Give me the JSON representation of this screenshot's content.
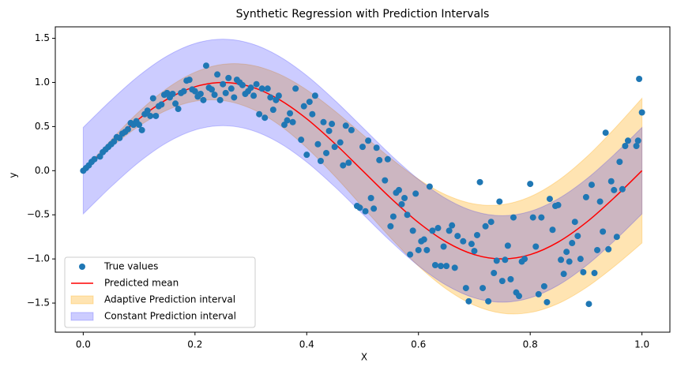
{
  "chart_data": {
    "type": "scatter",
    "title": "Synthetic Regression with Prediction Intervals",
    "xlabel": "X",
    "ylabel": "y",
    "xlim": [
      -0.05,
      1.05
    ],
    "ylim": [
      -1.83,
      1.63
    ],
    "xticks": [
      {
        "value": 0,
        "label": "0.0"
      },
      0.2,
      0.4,
      0.6,
      0.8,
      {
        "value": 1,
        "label": "1.0"
      }
    ],
    "yticks": [
      {
        "value": -1.5,
        "label": "−1.5"
      },
      {
        "value": -1,
        "label": "−1.0"
      },
      {
        "value": -0.5,
        "label": "−0.5"
      },
      {
        "value": 0,
        "label": "0.0"
      },
      0.5,
      {
        "value": 1,
        "label": "1.0"
      },
      1.5
    ],
    "grid": false,
    "legend": "lower left",
    "series": [
      {
        "name": "Adaptive Prediction interval",
        "type": "band",
        "color": "#ffa500",
        "opacity": 0.3,
        "x": [
          0,
          0.05,
          0.1,
          0.15,
          0.2,
          0.25,
          0.3,
          0.35,
          0.4,
          0.45,
          0.5,
          0.55,
          0.6,
          0.65,
          0.7,
          0.75,
          0.8,
          0.85,
          0.9,
          0.95,
          1
        ],
        "lower": [
          0,
          0.268,
          0.506,
          0.686,
          0.787,
          0.795,
          0.705,
          0.522,
          0.26,
          -0.06,
          -0.41,
          -0.76,
          -1.08,
          -1.342,
          -1.525,
          -1.615,
          -1.607,
          -1.506,
          -1.326,
          -1.088,
          -0.82
        ],
        "upper": [
          0,
          0.35,
          0.67,
          0.932,
          1.115,
          1.205,
          1.197,
          1.096,
          0.916,
          0.678,
          0.41,
          0.142,
          -0.096,
          -0.276,
          -0.377,
          -0.385,
          -0.295,
          -0.112,
          0.15,
          0.47,
          0.82
        ]
      },
      {
        "name": "Constant Prediction interval",
        "type": "band",
        "color": "#0000ff",
        "opacity": 0.2,
        "x": [
          0,
          0.05,
          0.1,
          0.15,
          0.2,
          0.25,
          0.3,
          0.35,
          0.4,
          0.45,
          0.5,
          0.55,
          0.6,
          0.65,
          0.7,
          0.75,
          0.8,
          0.85,
          0.9,
          0.95,
          1
        ],
        "lower": [
          -0.49,
          -0.181,
          0.098,
          0.319,
          0.461,
          0.51,
          0.461,
          0.319,
          0.098,
          -0.181,
          -0.49,
          -0.799,
          -1.078,
          -1.299,
          -1.441,
          -1.49,
          -1.441,
          -1.299,
          -1.078,
          -0.799,
          -0.49
        ],
        "upper": [
          0.49,
          0.799,
          1.078,
          1.299,
          1.441,
          1.49,
          1.441,
          1.299,
          1.078,
          0.799,
          0.49,
          0.181,
          -0.098,
          -0.319,
          -0.461,
          -0.51,
          -0.461,
          -0.319,
          -0.098,
          0.181,
          0.49
        ]
      },
      {
        "name": "Predicted mean",
        "type": "line",
        "color": "#ff0000",
        "x": [
          0,
          0.05,
          0.1,
          0.15,
          0.2,
          0.25,
          0.3,
          0.35,
          0.4,
          0.45,
          0.5,
          0.55,
          0.6,
          0.65,
          0.7,
          0.75,
          0.8,
          0.85,
          0.9,
          0.95,
          1
        ],
        "values": [
          0,
          0.309,
          0.588,
          0.809,
          0.951,
          1,
          0.951,
          0.809,
          0.588,
          0.309,
          0,
          -0.309,
          -0.588,
          -0.809,
          -0.951,
          -1,
          -0.951,
          -0.809,
          -0.588,
          -0.309,
          0
        ]
      },
      {
        "name": "True values",
        "type": "scatter",
        "color": "#1f77b4",
        "x": [
          0,
          0.005,
          0.01,
          0.015,
          0.02,
          0.03,
          0.035,
          0.04,
          0.045,
          0.05,
          0.055,
          0.06,
          0.065,
          0.07,
          0.075,
          0.08,
          0.085,
          0.09,
          0.095,
          0.1,
          0.105,
          0.11,
          0.115,
          0.12,
          0.125,
          0.13,
          0.135,
          0.14,
          0.145,
          0.15,
          0.155,
          0.16,
          0.165,
          0.17,
          0.175,
          0.18,
          0.185,
          0.19,
          0.195,
          0.2,
          0.205,
          0.21,
          0.215,
          0.22,
          0.225,
          0.23,
          0.235,
          0.24,
          0.245,
          0.25,
          0.255,
          0.26,
          0.265,
          0.27,
          0.275,
          0.28,
          0.285,
          0.29,
          0.295,
          0.3,
          0.305,
          0.31,
          0.315,
          0.32,
          0.325,
          0.33,
          0.335,
          0.34,
          0.345,
          0.35,
          0.36,
          0.365,
          0.37,
          0.375,
          0.38,
          0.39,
          0.395,
          0.4,
          0.405,
          0.41,
          0.415,
          0.42,
          0.425,
          0.43,
          0.435,
          0.44,
          0.445,
          0.45,
          0.46,
          0.465,
          0.47,
          0.475,
          0.48,
          0.49,
          0.495,
          0.5,
          0.505,
          0.51,
          0.515,
          0.52,
          0.525,
          0.53,
          0.54,
          0.545,
          0.55,
          0.555,
          0.56,
          0.565,
          0.57,
          0.575,
          0.58,
          0.585,
          0.59,
          0.595,
          0.6,
          0.605,
          0.61,
          0.615,
          0.62,
          0.625,
          0.63,
          0.635,
          0.64,
          0.645,
          0.65,
          0.655,
          0.66,
          0.665,
          0.67,
          0.68,
          0.685,
          0.69,
          0.695,
          0.7,
          0.705,
          0.71,
          0.715,
          0.72,
          0.725,
          0.73,
          0.735,
          0.74,
          0.745,
          0.75,
          0.755,
          0.76,
          0.765,
          0.77,
          0.775,
          0.78,
          0.785,
          0.79,
          0.8,
          0.805,
          0.81,
          0.815,
          0.82,
          0.825,
          0.83,
          0.835,
          0.84,
          0.845,
          0.85,
          0.855,
          0.86,
          0.865,
          0.87,
          0.875,
          0.88,
          0.885,
          0.89,
          0.895,
          0.9,
          0.905,
          0.91,
          0.915,
          0.92,
          0.925,
          0.93,
          0.935,
          0.94,
          0.945,
          0.95,
          0.955,
          0.96,
          0.965,
          0.97,
          0.975,
          0.99,
          0.993,
          0.995,
          1
        ],
        "values": [
          0,
          0.03,
          0.06,
          0.1,
          0.13,
          0.16,
          0.21,
          0.24,
          0.27,
          0.3,
          0.33,
          0.38,
          0.37,
          0.42,
          0.44,
          0.47,
          0.54,
          0.52,
          0.56,
          0.52,
          0.46,
          0.64,
          0.68,
          0.62,
          0.82,
          0.62,
          0.73,
          0.75,
          0.86,
          0.88,
          0.83,
          0.87,
          0.76,
          0.7,
          0.88,
          0.9,
          1.02,
          1.03,
          0.92,
          0.9,
          0.84,
          0.87,
          0.8,
          1.19,
          0.94,
          0.92,
          0.86,
          1.09,
          0.8,
          0.98,
          0.88,
          1.05,
          0.93,
          0.83,
          1.03,
          1,
          0.97,
          0.87,
          0.9,
          0.94,
          0.85,
          0.98,
          0.64,
          0.93,
          0.6,
          0.93,
          0.83,
          0.69,
          0.8,
          0.85,
          0.52,
          0.57,
          0.65,
          0.55,
          0.93,
          0.35,
          0.73,
          0.18,
          0.78,
          0.64,
          0.85,
          0.3,
          0.11,
          0.55,
          0.2,
          0.45,
          0.53,
          0.27,
          0.32,
          0.06,
          0.51,
          0.09,
          0.46,
          -0.4,
          -0.42,
          0.27,
          -0.46,
          0.34,
          -0.31,
          -0.43,
          0.26,
          0.12,
          -0.11,
          0.13,
          -0.63,
          -0.52,
          -0.25,
          -0.22,
          -0.38,
          -0.31,
          -0.5,
          -0.95,
          -0.68,
          -0.26,
          -0.9,
          -0.8,
          -0.78,
          -0.9,
          -0.18,
          -0.68,
          -1.07,
          -0.65,
          -1.08,
          -0.86,
          -1.08,
          -0.68,
          -0.62,
          -1.1,
          -0.74,
          -0.8,
          -1.33,
          -1.48,
          -0.83,
          -0.91,
          -0.73,
          -0.13,
          -1.33,
          -0.63,
          -1.48,
          -0.58,
          -1.16,
          -1.02,
          -0.35,
          -1.25,
          -1.01,
          -0.85,
          -1.23,
          -0.53,
          -1.38,
          -1.42,
          -1.03,
          -1,
          -0.15,
          -0.53,
          -0.86,
          -1.4,
          -0.53,
          -1.31,
          -1.49,
          -0.32,
          -0.67,
          -0.4,
          -0.39,
          -1.01,
          -1.17,
          -0.92,
          -1.03,
          -0.82,
          -0.58,
          -0.74,
          -1,
          -1.15,
          -0.3,
          -1.51,
          -0.16,
          -1.16,
          -0.9,
          -0.35,
          -0.69,
          0.43,
          -0.89,
          -0.12,
          -0.22,
          -0.75,
          0.1,
          -0.21,
          0.28,
          0.34,
          0.28,
          0.34,
          1.04,
          0.66
        ]
      }
    ],
    "legend_order": [
      3,
      2,
      0,
      1
    ]
  }
}
